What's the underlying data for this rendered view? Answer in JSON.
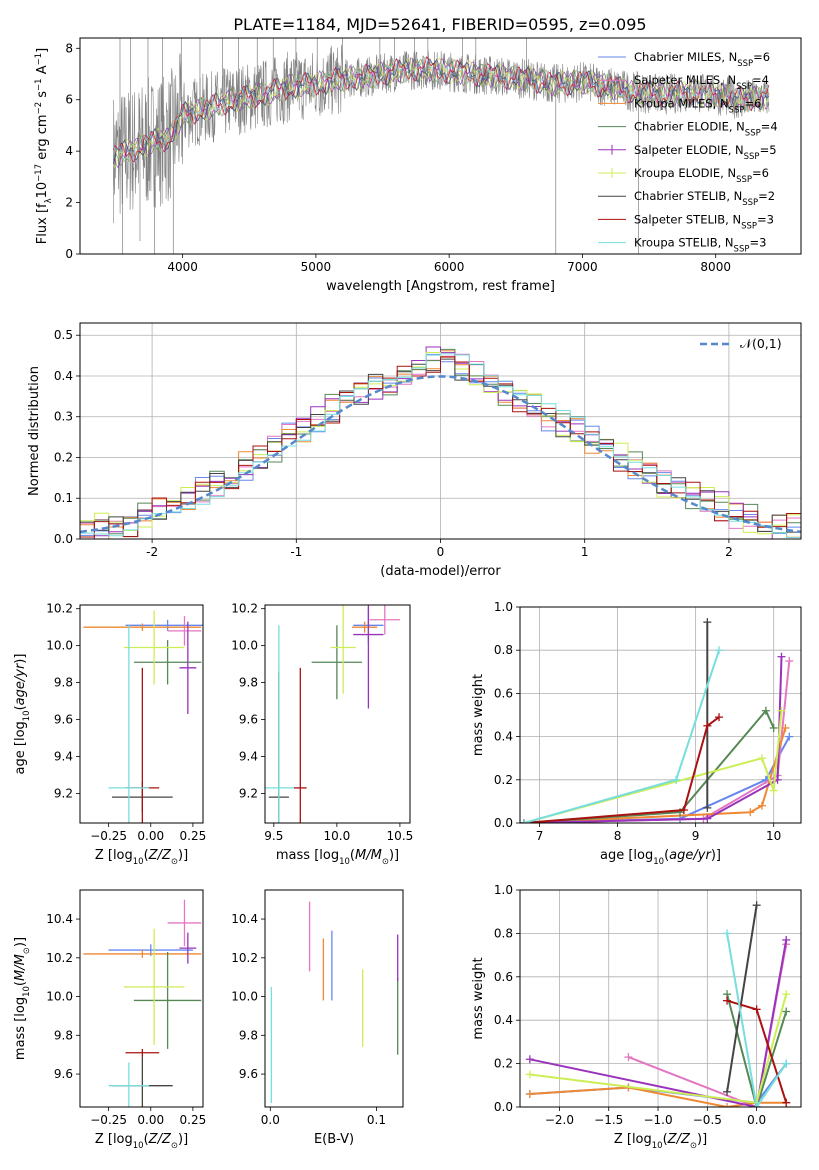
{
  "title": "PLATE=1184, MJD=52641, FIBERID=0595, z=0.095",
  "colors": [
    "#6688ee",
    "#e377c2",
    "#ee8833",
    "#558855",
    "#9933bb",
    "#ccee55",
    "#444444",
    "#aa1111",
    "#77dddd"
  ],
  "legend": [
    {
      "pre": "Chabrier MILES, N",
      "sub": "SSP",
      "post": "=6"
    },
    {
      "pre": "Salpeter MILES, N",
      "sub": "SSP",
      "post": "=4"
    },
    {
      "pre": "Kroupa MILES, N",
      "sub": "SSP",
      "post": "=6"
    },
    {
      "pre": "Chabrier ELODIE, N",
      "sub": "SSP",
      "post": "=4"
    },
    {
      "pre": "Salpeter ELODIE, N",
      "sub": "SSP",
      "post": "=5"
    },
    {
      "pre": "Kroupa ELODIE, N",
      "sub": "SSP",
      "post": "=6"
    },
    {
      "pre": "Chabrier STELIB, N",
      "sub": "SSP",
      "post": "=2"
    },
    {
      "pre": "Salpeter STELIB, N",
      "sub": "SSP",
      "post": "=3"
    },
    {
      "pre": "Kroupa STELIB, N",
      "sub": "SSP",
      "post": "=3"
    }
  ],
  "chart_data": [
    {
      "id": "spectrum",
      "type": "line",
      "xlabel": "wavelength [Angstrom, rest frame]",
      "ylabel_pre": "Flux [f",
      "ylabel_sub": "λ",
      "ylabel_mid": "10",
      "ylabel_sup1": "−17",
      "ylabel_post1": " erg cm",
      "ylabel_sup2": "−2",
      "ylabel_post2": " s",
      "ylabel_sup3": "−1",
      "ylabel_post3": " A",
      "ylabel_sup4": "−1",
      "ylabel_end": "]",
      "xlim": [
        3230,
        8640
      ],
      "ylim": [
        0,
        8.4
      ],
      "xticks": [
        4000,
        5000,
        6000,
        7000,
        8000
      ],
      "yticks": [
        0,
        2,
        4,
        6,
        8
      ],
      "data_color": "#808080",
      "data_range": [
        3480,
        8400
      ],
      "continuum": [
        [
          3480,
          3.8
        ],
        [
          3600,
          4.0
        ],
        [
          3700,
          4.2
        ],
        [
          3800,
          4.4
        ],
        [
          3900,
          4.5
        ],
        [
          4000,
          5.4
        ],
        [
          4200,
          5.7
        ],
        [
          4400,
          6.0
        ],
        [
          4600,
          6.2
        ],
        [
          4800,
          6.5
        ],
        [
          5000,
          6.6
        ],
        [
          5200,
          6.8
        ],
        [
          5400,
          6.9
        ],
        [
          5600,
          7.1
        ],
        [
          5800,
          7.2
        ],
        [
          6000,
          7.1
        ],
        [
          6200,
          7.0
        ],
        [
          6400,
          6.9
        ],
        [
          6600,
          6.8
        ],
        [
          6800,
          6.6
        ],
        [
          7000,
          6.7
        ],
        [
          7200,
          6.5
        ],
        [
          7400,
          6.3
        ],
        [
          7600,
          6.2
        ],
        [
          7800,
          6.3
        ],
        [
          8000,
          6.2
        ],
        [
          8200,
          6.0
        ],
        [
          8400,
          6.1
        ]
      ],
      "spikes": [
        [
          3530,
          8.4
        ],
        [
          3550,
          0
        ],
        [
          3610,
          8.4
        ],
        [
          3680,
          0.5
        ],
        [
          3740,
          8.4
        ],
        [
          3790,
          0
        ],
        [
          3850,
          8.4
        ],
        [
          3930,
          0
        ],
        [
          3990,
          8.4
        ],
        [
          4130,
          8.4
        ],
        [
          4300,
          8.4
        ],
        [
          4420,
          8.4
        ],
        [
          4560,
          8.4
        ],
        [
          4680,
          8.4
        ],
        [
          4850,
          8.4
        ],
        [
          5010,
          8.4
        ],
        [
          5200,
          8.4
        ],
        [
          5480,
          8.4
        ],
        [
          5590,
          8.4
        ],
        [
          5740,
          8.4
        ],
        [
          5840,
          8.4
        ],
        [
          6100,
          8.4
        ],
        [
          6200,
          8.4
        ],
        [
          6580,
          8.4
        ],
        [
          6800,
          0
        ],
        [
          7420,
          0
        ]
      ]
    },
    {
      "id": "residuals",
      "type": "line",
      "xlabel": "(data-model)/error",
      "ylabel": "Normed distribution",
      "xlim": [
        -2.5,
        2.5
      ],
      "ylim": [
        0,
        0.53
      ],
      "xticks": [
        -2,
        -1,
        0,
        1,
        2
      ],
      "yticks": [
        0.0,
        0.1,
        0.2,
        0.3,
        0.4,
        0.5
      ],
      "bins": [
        -2.5,
        2.5,
        50
      ],
      "hist": [
        0.02,
        0.03,
        0.03,
        0.04,
        0.06,
        0.07,
        0.08,
        0.1,
        0.12,
        0.14,
        0.16,
        0.18,
        0.2,
        0.22,
        0.25,
        0.27,
        0.29,
        0.32,
        0.35,
        0.36,
        0.38,
        0.39,
        0.4,
        0.42,
        0.44,
        0.43,
        0.42,
        0.4,
        0.38,
        0.36,
        0.34,
        0.33,
        0.3,
        0.28,
        0.27,
        0.24,
        0.22,
        0.2,
        0.18,
        0.16,
        0.14,
        0.12,
        0.11,
        0.09,
        0.08,
        0.06,
        0.05,
        0.04,
        0.03,
        0.03
      ],
      "legend": "𝒩(0,1)",
      "gaussian": {
        "mu": 0,
        "sigma": 1
      }
    },
    {
      "id": "z-age",
      "type": "errorbar",
      "xlabel_pre": "Z [log",
      "xlabel_sub": "10",
      "xlabel_post": "(Z/Z",
      "xlabel_sub2": "⊙",
      "xlabel_end": ")]",
      "ylabel": "age  [log₁₀(age/yr)]",
      "xlim": [
        -0.42,
        0.31
      ],
      "ylim": [
        9.04,
        10.22
      ],
      "xticks": [
        -0.25,
        0.0,
        0.25
      ],
      "xticklabels": [
        "−0.25",
        "0.00",
        "0.25"
      ],
      "yticks": [
        9.2,
        9.4,
        9.6,
        9.8,
        10.0,
        10.2
      ],
      "points": [
        {
          "c": 0,
          "x": 0.1,
          "xerr": 0.25,
          "y": 10.11,
          "yerr": 0.03
        },
        {
          "c": 1,
          "x": 0.2,
          "xerr": 0.1,
          "y": 10.08,
          "yerr": 0.08
        },
        {
          "c": 2,
          "x": -0.05,
          "xerr": 0.35,
          "y": 10.1,
          "yerr": 0.02
        },
        {
          "c": 3,
          "x": 0.1,
          "xerr": 0.2,
          "y": 9.91,
          "yerr": 0.12
        },
        {
          "c": 4,
          "x": 0.22,
          "xerr": 0.05,
          "y": 9.88,
          "yerr": 0.25
        },
        {
          "c": 5,
          "x": 0.02,
          "xerr": 0.18,
          "y": 9.99,
          "yerr": 0.2
        },
        {
          "c": 6,
          "x": -0.05,
          "xerr": 0.18,
          "y": 9.18,
          "yerr": 0.08
        },
        {
          "c": 7,
          "x": -0.05,
          "xerr": 0.1,
          "y": 9.23,
          "yerr": 0.65
        },
        {
          "c": 8,
          "x": -0.13,
          "xerr": 0.12,
          "y": 9.23,
          "yerr": 0.88
        }
      ]
    },
    {
      "id": "mass-age",
      "type": "errorbar",
      "xlabel_pre": "mass [log",
      "xlabel_sub": "10",
      "xlabel_post": "(M/M",
      "xlabel_sub2": "⊙",
      "xlabel_end": ")]",
      "xlim": [
        9.43,
        10.58
      ],
      "ylim": [
        9.04,
        10.22
      ],
      "xticks": [
        9.5,
        10.0,
        10.5
      ],
      "xticklabels": [
        "9.5",
        "10.0",
        "10.5"
      ],
      "yticks": [
        9.2,
        9.4,
        9.6,
        9.8,
        10.0,
        10.2
      ],
      "points": [
        {
          "c": 0,
          "x": 10.25,
          "xerr": 0.12,
          "y": 10.11,
          "yerr": 0.1
        },
        {
          "c": 1,
          "x": 10.38,
          "xerr": 0.12,
          "y": 10.14,
          "yerr": 0.08
        },
        {
          "c": 2,
          "x": 10.22,
          "xerr": 0.1,
          "y": 10.1,
          "yerr": 0.03
        },
        {
          "c": 3,
          "x": 10.0,
          "xerr": 0.2,
          "y": 9.91,
          "yerr": 0.2
        },
        {
          "c": 4,
          "x": 10.25,
          "xerr": 0.12,
          "y": 10.06,
          "yerr": 0.4
        },
        {
          "c": 5,
          "x": 10.05,
          "xerr": 0.1,
          "y": 9.99,
          "yerr": 0.25
        },
        {
          "c": 6,
          "x": 9.54,
          "xerr": 0.08,
          "y": 9.18,
          "yerr": 0.68
        },
        {
          "c": 7,
          "x": 9.71,
          "xerr": 0.05,
          "y": 9.23,
          "yerr": 0.65
        },
        {
          "c": 8,
          "x": 9.54,
          "xerr": 0.12,
          "y": 9.23,
          "yerr": 0.88
        }
      ]
    },
    {
      "id": "age-weight",
      "type": "line",
      "xlabel_pre": "age  [log",
      "xlabel_sub": "10",
      "xlabel_post": "(age/yr)]",
      "ylabel": "mass weight",
      "xlim": [
        6.75,
        10.35
      ],
      "ylim": [
        0,
        1.0
      ],
      "xticks": [
        7,
        8,
        9,
        10
      ],
      "yticks": [
        0.0,
        0.2,
        0.4,
        0.6,
        0.8,
        1.0
      ],
      "series": [
        {
          "c": 0,
          "x": [
            6.8,
            8.8,
            9.9,
            10.2
          ],
          "y": [
            0.0,
            0.02,
            0.2,
            0.4
          ]
        },
        {
          "c": 1,
          "x": [
            6.8,
            9.1,
            10.05,
            10.2
          ],
          "y": [
            0.0,
            0.02,
            0.22,
            0.75
          ]
        },
        {
          "c": 2,
          "x": [
            6.8,
            9.7,
            9.85,
            10.15
          ],
          "y": [
            0.0,
            0.05,
            0.08,
            0.44
          ]
        },
        {
          "c": 3,
          "x": [
            6.8,
            8.8,
            9.9,
            10.0
          ],
          "y": [
            0.0,
            0.05,
            0.52,
            0.44
          ]
        },
        {
          "c": 4,
          "x": [
            6.8,
            9.15,
            10.05,
            10.1
          ],
          "y": [
            0.0,
            0.02,
            0.2,
            0.77
          ]
        },
        {
          "c": 5,
          "x": [
            6.8,
            9.85,
            10.0,
            10.1
          ],
          "y": [
            0.0,
            0.3,
            0.15,
            0.52
          ]
        },
        {
          "c": 6,
          "x": [
            9.15,
            9.15
          ],
          "y": [
            0.07,
            0.93
          ]
        },
        {
          "c": 7,
          "x": [
            6.8,
            8.85,
            9.15,
            9.3
          ],
          "y": [
            0.0,
            0.06,
            0.45,
            0.49
          ]
        },
        {
          "c": 8,
          "x": [
            6.8,
            8.75,
            9.3
          ],
          "y": [
            0.0,
            0.2,
            0.8
          ]
        }
      ]
    },
    {
      "id": "z-mass",
      "type": "errorbar",
      "xlabel_pre": "Z [log",
      "xlabel_sub": "10",
      "xlabel_post": "(Z/Z",
      "xlabel_sub2": "⊙",
      "xlabel_end": ")]",
      "ylabel": "mass [log₁₀(M/M⊙)]",
      "xlim": [
        -0.42,
        0.31
      ],
      "ylim": [
        9.43,
        10.55
      ],
      "xticks": [
        -0.25,
        0.0,
        0.25
      ],
      "xticklabels": [
        "−0.25",
        "0.00",
        "0.25"
      ],
      "yticks": [
        9.6,
        9.8,
        10.0,
        10.2,
        10.4
      ],
      "points": [
        {
          "c": 0,
          "x": 0.0,
          "xerr": 0.25,
          "y": 10.24,
          "yerr": 0.03
        },
        {
          "c": 1,
          "x": 0.2,
          "xerr": 0.1,
          "y": 10.38,
          "yerr": 0.12
        },
        {
          "c": 2,
          "x": -0.05,
          "xerr": 0.35,
          "y": 10.22,
          "yerr": 0.02
        },
        {
          "c": 3,
          "x": 0.1,
          "xerr": 0.2,
          "y": 9.98,
          "yerr": 0.25
        },
        {
          "c": 4,
          "x": 0.22,
          "xerr": 0.05,
          "y": 10.25,
          "yerr": 0.08
        },
        {
          "c": 5,
          "x": 0.02,
          "xerr": 0.18,
          "y": 10.05,
          "yerr": 0.3
        },
        {
          "c": 6,
          "x": -0.05,
          "xerr": 0.18,
          "y": 9.54,
          "yerr": 0.15
        },
        {
          "c": 7,
          "x": -0.05,
          "xerr": 0.1,
          "y": 9.71,
          "yerr": 0.02
        },
        {
          "c": 8,
          "x": -0.13,
          "xerr": 0.12,
          "y": 9.54,
          "yerr": 0.12
        }
      ]
    },
    {
      "id": "ebv-mass",
      "type": "errorbar",
      "xlabel": "E(B-V)",
      "xlim": [
        -0.005,
        0.125
      ],
      "ylim": [
        9.43,
        10.55
      ],
      "xticks": [
        0.0,
        0.1
      ],
      "xticklabels": [
        "0.0",
        "0.1"
      ],
      "yticks": [
        9.6,
        9.8,
        10.0,
        10.2,
        10.4
      ],
      "points": [
        {
          "c": 0,
          "x": 0.058,
          "xerr": 0,
          "y": 10.16,
          "yerr": 0.18
        },
        {
          "c": 1,
          "x": 0.037,
          "xerr": 0,
          "y": 10.31,
          "yerr": 0.18
        },
        {
          "c": 2,
          "x": 0.05,
          "xerr": 0,
          "y": 10.14,
          "yerr": 0.16
        },
        {
          "c": 3,
          "x": 0.12,
          "xerr": 0,
          "y": 9.9,
          "yerr": 0.2
        },
        {
          "c": 4,
          "x": 0.12,
          "xerr": 0,
          "y": 10.2,
          "yerr": 0.12
        },
        {
          "c": 5,
          "x": 0.087,
          "xerr": 0,
          "y": 9.94,
          "yerr": 0.2
        },
        {
          "c": 8,
          "x": 0.001,
          "xerr": 0,
          "y": 9.75,
          "yerr": 0.3
        }
      ]
    },
    {
      "id": "z-weight",
      "type": "line",
      "xlabel_pre": "Z [log",
      "xlabel_sub": "10",
      "xlabel_post": "(Z/Z",
      "xlabel_sub2": "⊙",
      "xlabel_end": ")]",
      "ylabel": "mass weight",
      "xlim": [
        -2.4,
        0.45
      ],
      "ylim": [
        0,
        1.0
      ],
      "xticks": [
        -2.0,
        -1.5,
        -1.0,
        -0.5,
        0.0
      ],
      "xticklabels": [
        "−2.0",
        "−1.5",
        "−1.0",
        "−0.5",
        "0.0"
      ],
      "yticks": [
        0.0,
        0.2,
        0.4,
        0.6,
        0.8,
        1.0
      ],
      "series": [
        {
          "c": 0,
          "x": [
            -2.3,
            -1.3,
            0.0,
            0.3
          ],
          "y": [
            0.06,
            0.09,
            0.02,
            0.2
          ]
        },
        {
          "c": 1,
          "x": [
            -1.3,
            0.0,
            0.3
          ],
          "y": [
            0.23,
            0.0,
            0.75
          ]
        },
        {
          "c": 2,
          "x": [
            -2.3,
            -1.3,
            -0.3,
            0.0,
            0.3
          ],
          "y": [
            0.06,
            0.09,
            0.0,
            0.02,
            0.02
          ]
        },
        {
          "c": 3,
          "x": [
            -0.3,
            0.0,
            0.3
          ],
          "y": [
            0.52,
            0.0,
            0.44
          ]
        },
        {
          "c": 4,
          "x": [
            -2.3,
            0.0,
            0.3
          ],
          "y": [
            0.22,
            0.0,
            0.77
          ]
        },
        {
          "c": 5,
          "x": [
            -2.3,
            0.0,
            0.3
          ],
          "y": [
            0.15,
            0.02,
            0.52
          ]
        },
        {
          "c": 6,
          "x": [
            -0.3,
            0.0
          ],
          "y": [
            0.07,
            0.93
          ]
        },
        {
          "c": 7,
          "x": [
            -0.3,
            0.0,
            0.3
          ],
          "y": [
            0.49,
            0.45,
            0.02
          ]
        },
        {
          "c": 8,
          "x": [
            -0.3,
            0.0,
            0.3
          ],
          "y": [
            0.8,
            0.0,
            0.2
          ]
        }
      ]
    }
  ]
}
